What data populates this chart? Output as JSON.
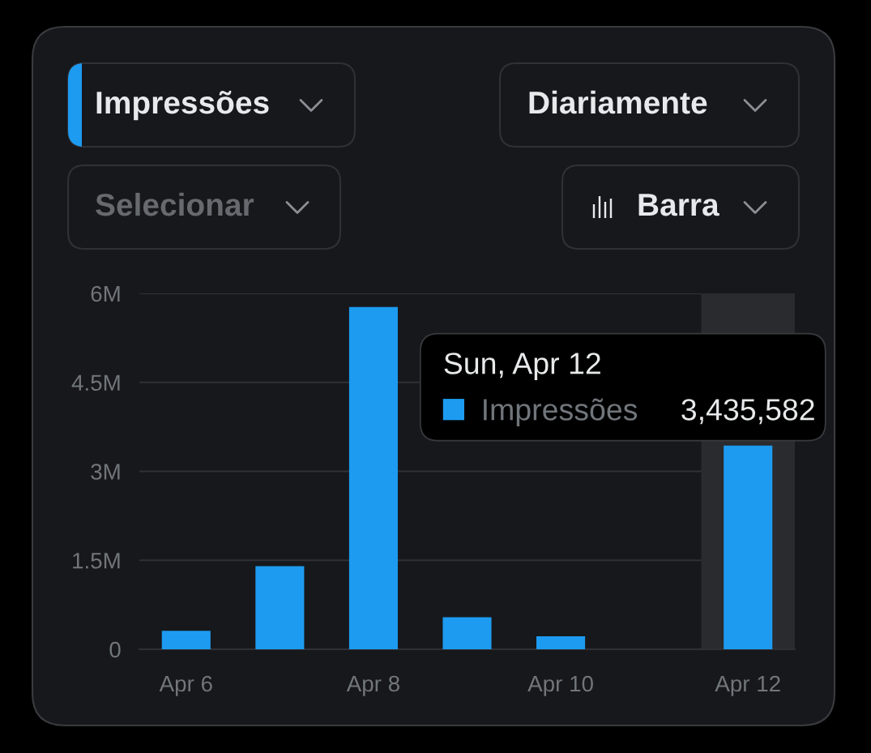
{
  "chart_data": {
    "type": "bar",
    "categories": [
      "Apr 6",
      null,
      "Apr 8",
      null,
      "Apr 10",
      null,
      "Apr 12"
    ],
    "series": [
      {
        "name": "Impressões",
        "color": "#1d9bf0",
        "values": [
          310000,
          1400000,
          5770000,
          540000,
          220000,
          null,
          3435582
        ],
        "value_labels": [
          null,
          null,
          null,
          null,
          null,
          null,
          "3,435,582"
        ]
      }
    ],
    "ylim": [
      0,
      6000000
    ],
    "yticks": [
      0,
      {
        "value": 1500000,
        "label": "1.5M"
      },
      {
        "value": 3000000,
        "label": "3M"
      },
      {
        "value": 4500000,
        "label": "4.5M"
      },
      {
        "value": 6000000,
        "label": "6M"
      }
    ],
    "grid": "y",
    "legend": "center",
    "bands": [
      {
        "axis": "x",
        "from": "Apr 12",
        "to": "Apr 12",
        "color": "#2a2b2f"
      }
    ],
    "annotations": [
      "Impressões",
      "Diariamente",
      "Selecionar",
      "Barra",
      "Sun, Apr 12"
    ]
  }
}
